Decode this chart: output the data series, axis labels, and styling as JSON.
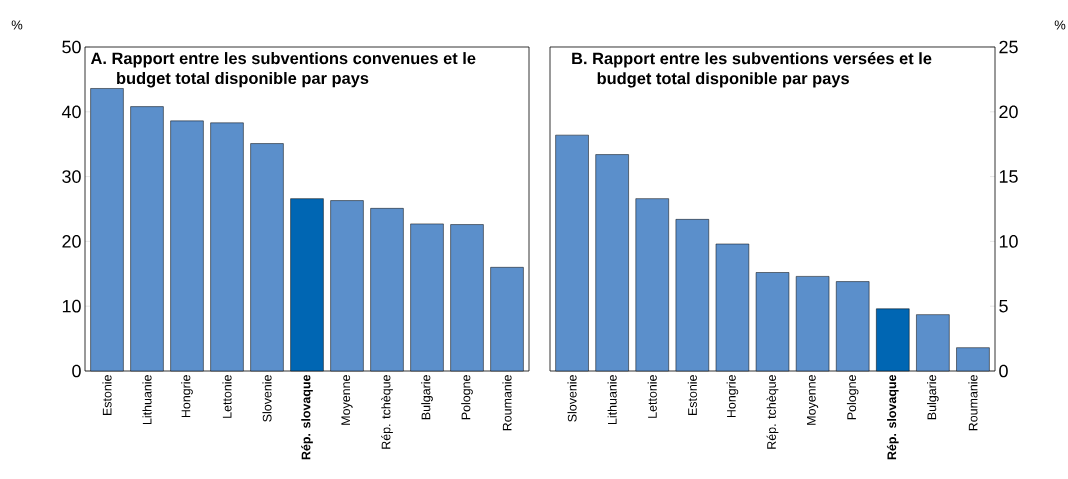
{
  "chart_data": [
    {
      "type": "bar",
      "title": "A. Rapport entre les subventions convenues et le budget total disponible par pays",
      "ylabel": "%",
      "categories": [
        "Estonie",
        "Lithuanie",
        "Hongrie",
        "Lettonie",
        "Slovenie",
        "Rép. slovaque",
        "Moyenne",
        "Rép. tchèque",
        "Bulgarie",
        "Pologne",
        "Roumanie"
      ],
      "values": [
        43.6,
        40.8,
        38.6,
        38.3,
        35.1,
        26.6,
        26.3,
        25.1,
        22.7,
        22.6,
        16.0
      ],
      "colors": [
        "#5b8fcb",
        "#5b8fcb",
        "#5b8fcb",
        "#5b8fcb",
        "#5b8fcb",
        "#0066b3",
        "#5b8fcb",
        "#5b8fcb",
        "#5b8fcb",
        "#5b8fcb",
        "#5b8fcb"
      ],
      "ylim": [
        0,
        50
      ],
      "yticks": [
        0,
        10,
        20,
        30,
        40,
        50
      ]
    },
    {
      "type": "bar",
      "title": "B. Rapport entre les subventions versées et le budget total disponible par pays",
      "y2label": "%",
      "categories": [
        "Slovenie",
        "Lithuanie",
        "Lettonie",
        "Estonie",
        "Hongrie",
        "Rép. tchèque",
        "Moyenne",
        "Pologne",
        "Rép. slovaque",
        "Bulgarie",
        "Roumanie"
      ],
      "series": [
        {
          "axis": "y2",
          "values": [
            18.2,
            16.7,
            13.3,
            11.7,
            9.8,
            7.6,
            7.3,
            6.9,
            4.8,
            4.35,
            1.8
          ],
          "colors": [
            "#5b8fcb",
            "#5b8fcb",
            "#5b8fcb",
            "#5b8fcb",
            "#5b8fcb",
            "#5b8fcb",
            "#5b8fcb",
            "#5b8fcb",
            "#0066b3",
            "#5b8fcb",
            "#5b8fcb"
          ]
        }
      ],
      "y2lim": [
        0,
        25
      ],
      "y2ticks": [
        0,
        5,
        10,
        15,
        20,
        25
      ]
    }
  ]
}
